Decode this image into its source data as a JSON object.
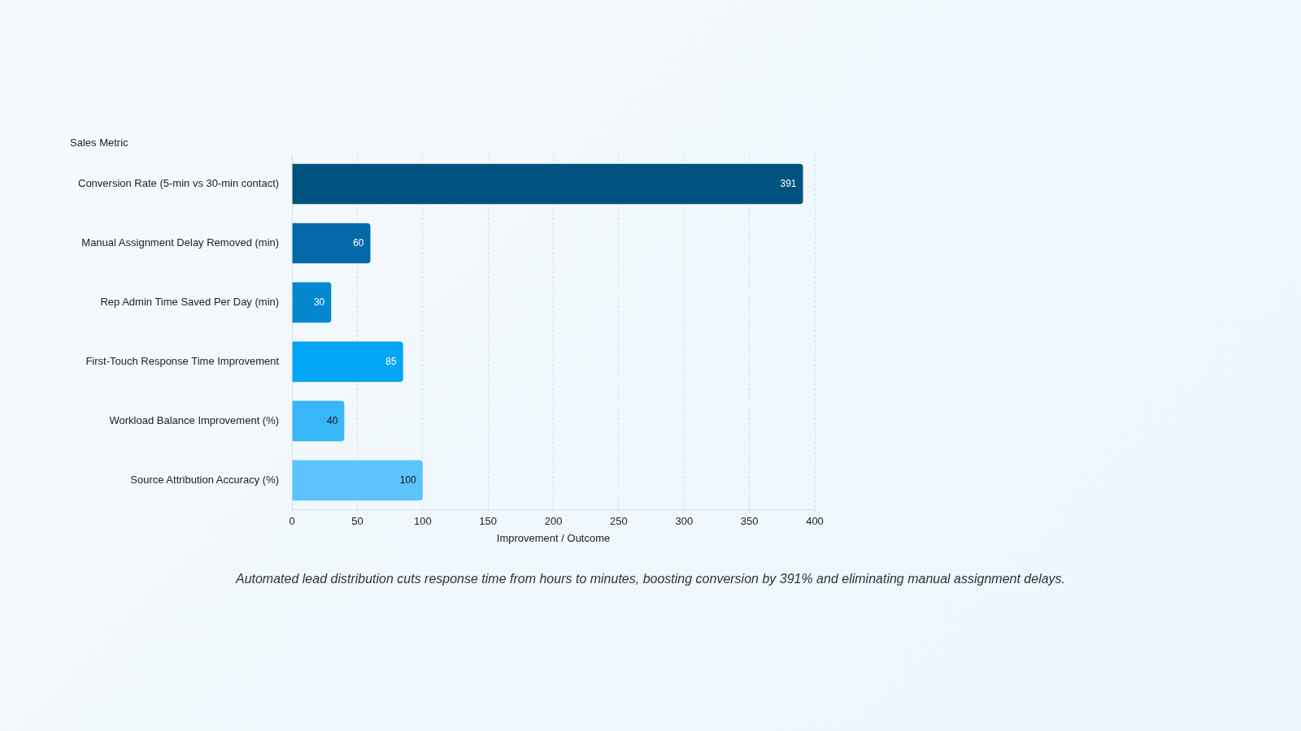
{
  "chart_data": {
    "type": "bar",
    "orientation": "horizontal",
    "ylabel": "Sales Metric",
    "xlabel": "Improvement / Outcome",
    "categories": [
      "Conversion Rate (5-min vs 30-min contact)",
      "Manual Assignment Delay Removed (min)",
      "Rep Admin Time Saved Per Day (min)",
      "First-Touch Response Time Improvement",
      "Workload Balance Improvement (%)",
      "Source Attribution Accuracy (%)"
    ],
    "values": [
      391,
      60,
      30,
      85,
      40,
      100
    ],
    "colors": [
      "#00527f",
      "#0369a8",
      "#0388d0",
      "#03a5f5",
      "#38b6f7",
      "#5cc4fb"
    ],
    "xlim": [
      0,
      400
    ],
    "xticks": [
      0,
      50,
      100,
      150,
      200,
      250,
      300,
      350,
      400
    ],
    "grid": "x",
    "data_labels": true,
    "annotations": [
      "Automated lead distribution cuts response time from hours to minutes, boosting conversion by 391% and eliminating manual assignment delays."
    ]
  }
}
